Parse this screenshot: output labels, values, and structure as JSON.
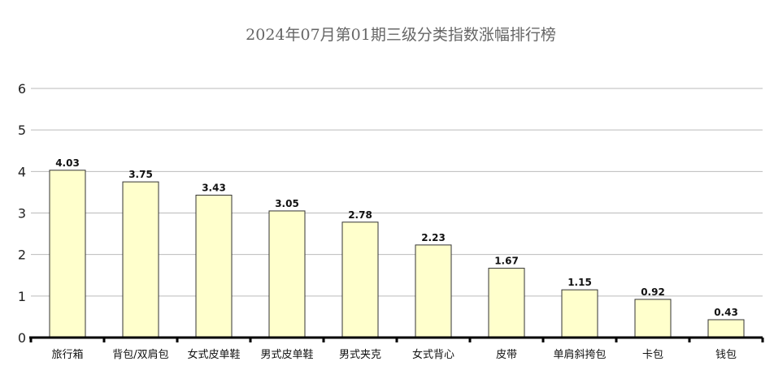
{
  "chart_data": {
    "type": "bar",
    "title": "2024年07月第01期三级分类指数涨幅排行榜",
    "xlabel": "",
    "ylabel": "",
    "categories": [
      "旅行箱",
      "背包/双肩包",
      "女式皮单鞋",
      "男式皮单鞋",
      "男式夹克",
      "女式背心",
      "皮带",
      "单肩斜挎包",
      "卡包",
      "钱包"
    ],
    "values": [
      4.03,
      3.75,
      3.43,
      3.05,
      2.78,
      2.23,
      1.67,
      1.15,
      0.92,
      0.43
    ],
    "value_labels": [
      "4.03",
      "3.75",
      "3.43",
      "3.05",
      "2.78",
      "2.23",
      "1.67",
      "1.15",
      "0.92",
      "0.43"
    ],
    "ylim": [
      0,
      6
    ],
    "yticks": [
      "0",
      "1",
      "2",
      "3",
      "4",
      "5",
      "6"
    ],
    "grid": true,
    "legend": "none",
    "colors": {
      "bar_fill": "#ffffcc",
      "bar_stroke": "#333333",
      "grid": "#bbbbbb",
      "axis": "#000000"
    }
  }
}
